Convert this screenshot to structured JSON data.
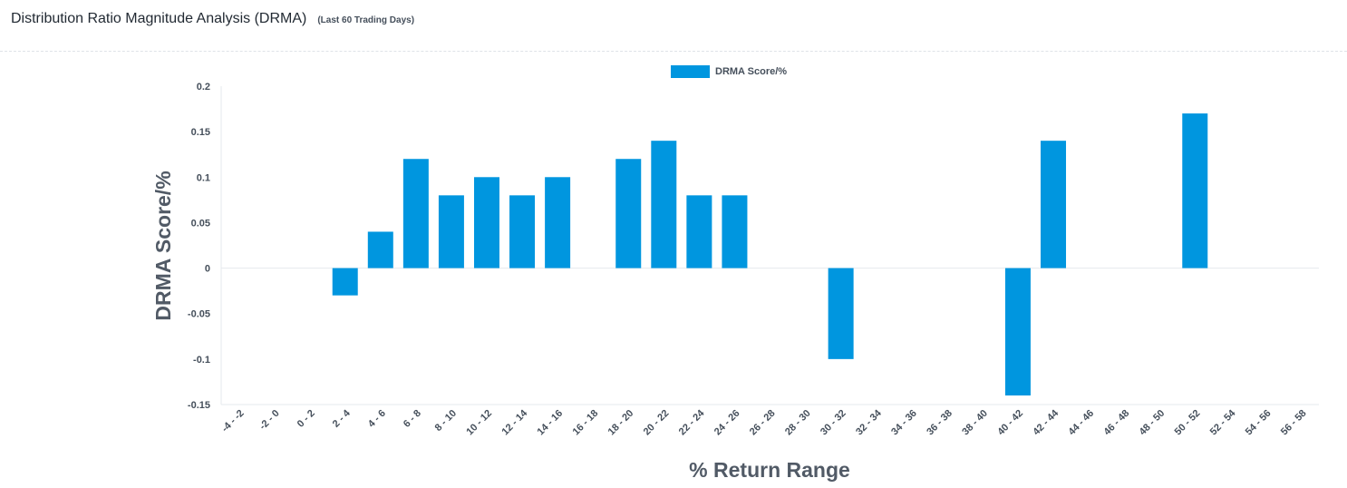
{
  "header": {
    "title": "Distribution Ratio Magnitude Analysis (DRMA)",
    "subtitle": "(Last 60 Trading Days)"
  },
  "chart_data": {
    "type": "bar",
    "categories": [
      "-4 - -2",
      "-2 - 0",
      "0 - 2",
      "2 - 4",
      "4 - 6",
      "6 - 8",
      "8 - 10",
      "10 - 12",
      "12 - 14",
      "14 - 16",
      "16 - 18",
      "18 - 20",
      "20 - 22",
      "22 - 24",
      "24 - 26",
      "26 - 28",
      "28 - 30",
      "30 - 32",
      "32 - 34",
      "34 - 36",
      "36 - 38",
      "38 - 40",
      "40 - 42",
      "42 - 44",
      "44 - 46",
      "46 - 48",
      "48 - 50",
      "50 - 52",
      "52 - 54",
      "54 - 56",
      "56 - 58"
    ],
    "series": [
      {
        "name": "DRMA Score/%",
        "color": "#0096df",
        "values": [
          0,
          0,
          0,
          -0.03,
          0.04,
          0.12,
          0.08,
          0.1,
          0.08,
          0.1,
          0,
          0.12,
          0.14,
          0.08,
          0.08,
          0,
          0,
          -0.1,
          0,
          0,
          0,
          0,
          -0.14,
          0.14,
          0,
          0,
          0,
          0.17,
          0,
          0,
          0
        ]
      }
    ],
    "xlabel": "% Return Range",
    "ylabel": "DRMA Score/%",
    "ylim": [
      -0.15,
      0.2
    ],
    "yticks": [
      0.2,
      0.15,
      0.1,
      0.05,
      0,
      -0.05,
      -0.1,
      -0.15
    ],
    "ytick_labels": [
      "0.2",
      "0.15",
      "0.1",
      "0.05",
      "0",
      "-0.05",
      "-0.1",
      "-0.15"
    ],
    "legend_position": "top-center",
    "grid": false
  }
}
